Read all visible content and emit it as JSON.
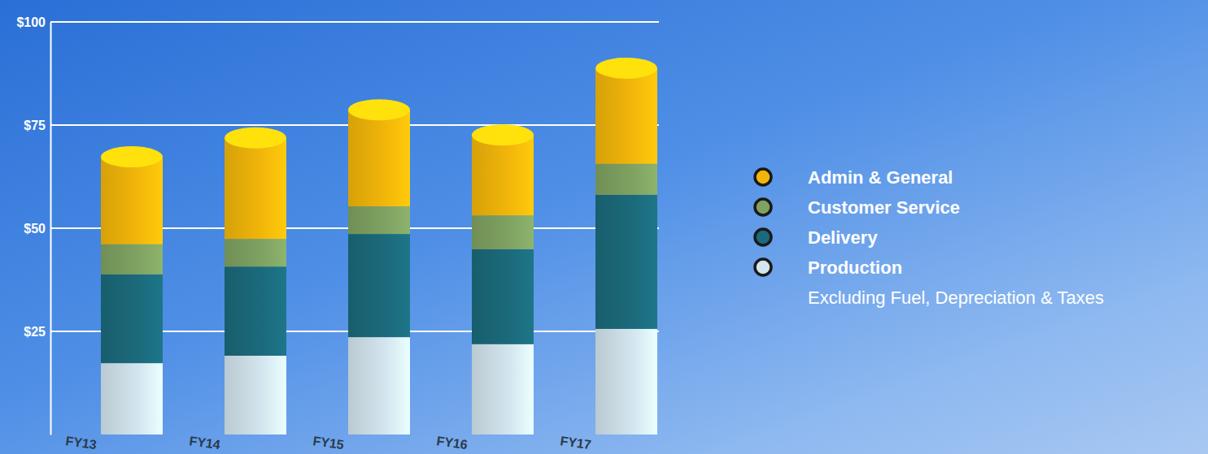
{
  "chart_data": {
    "type": "bar",
    "stacked": true,
    "grid": true,
    "subtitle": "Excluding Fuel, Depreciation & Taxes",
    "categories": [
      "FY13",
      "FY14",
      "FY15",
      "FY16",
      "FY17"
    ],
    "series": [
      {
        "name": "Production",
        "color": "#d3e5ee",
        "values": [
          17.3,
          19.1,
          23.6,
          21.9,
          25.6
        ]
      },
      {
        "name": "Delivery",
        "color": "#1b6a7b",
        "values": [
          21.5,
          21.6,
          25.0,
          23.0,
          32.5
        ]
      },
      {
        "name": "Customer Service",
        "color": "#7fa262",
        "values": [
          7.3,
          6.7,
          6.7,
          8.2,
          7.5
        ]
      },
      {
        "name": "Admin & General",
        "color": "#f2b60a",
        "values": [
          21.2,
          24.5,
          23.4,
          19.5,
          23.2
        ]
      }
    ],
    "ylim": [
      0,
      100
    ],
    "yticks": [
      {
        "value": 25,
        "label": "$25"
      },
      {
        "value": 50,
        "label": "$50"
      },
      {
        "value": 75,
        "label": "$75"
      },
      {
        "value": 100,
        "label": "$100"
      }
    ],
    "legend": "right"
  }
}
